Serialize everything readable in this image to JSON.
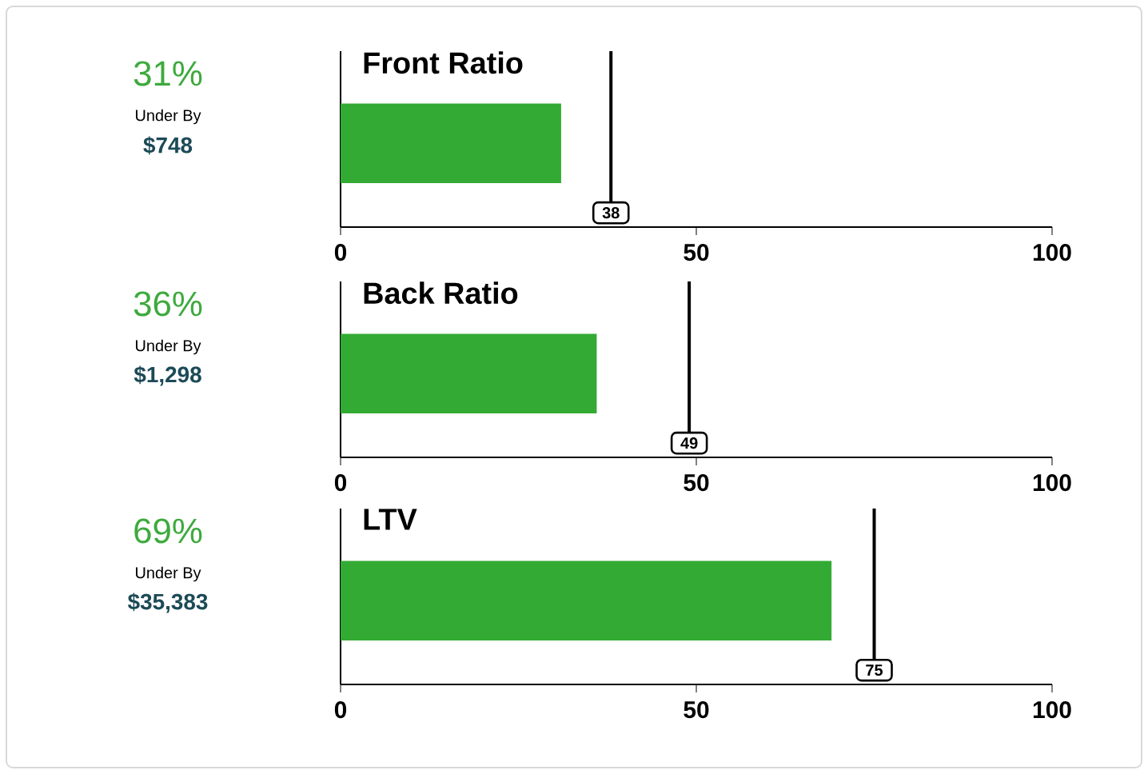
{
  "chart_data": [
    {
      "type": "bar",
      "orientation": "horizontal",
      "title": "Front Ratio",
      "categories": [
        null
      ],
      "values": [
        31
      ],
      "color": "#33aa33",
      "xlim": [
        0,
        100
      ],
      "xticks": [
        0,
        50,
        100
      ],
      "tick_labels": "x",
      "ref_lines": [
        {
          "axis": "x",
          "value": 38,
          "label": "38",
          "color": "#000000"
        }
      ],
      "annotations": [
        "31%",
        "Under By",
        "$748"
      ]
    },
    {
      "type": "bar",
      "orientation": "horizontal",
      "title": "Back Ratio",
      "categories": [
        null
      ],
      "values": [
        36
      ],
      "color": "#33aa33",
      "xlim": [
        0,
        100
      ],
      "xticks": [
        0,
        50,
        100
      ],
      "tick_labels": "x",
      "ref_lines": [
        {
          "axis": "x",
          "value": 49,
          "label": "49",
          "color": "#000000"
        }
      ],
      "annotations": [
        "36%",
        "Under By",
        "$1,298"
      ]
    },
    {
      "type": "bar",
      "orientation": "horizontal",
      "title": "LTV",
      "categories": [
        null
      ],
      "values": [
        69
      ],
      "color": "#33aa33",
      "xlim": [
        0,
        100
      ],
      "xticks": [
        0,
        50,
        100
      ],
      "tick_labels": "x",
      "ref_lines": [
        {
          "axis": "x",
          "value": 75,
          "label": "75",
          "color": "#000000"
        }
      ],
      "annotations": [
        "69%",
        "Under By",
        "$35,383"
      ]
    }
  ]
}
